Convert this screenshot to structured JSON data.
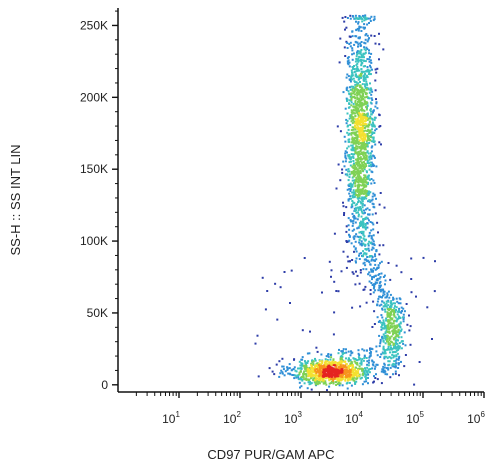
{
  "chart_data": {
    "type": "scatter",
    "subtype": "flow-cytometry-density-dot-plot",
    "title": "",
    "xlabel": "CD97 PUR/GAM APC",
    "ylabel": "SS-H :: SS INT LIN",
    "x_scale": "log",
    "x_range": [
      1,
      1000000
    ],
    "y_scale": "linear",
    "y_range": [
      -5000,
      262144
    ],
    "x_ticks": [
      {
        "base": "10",
        "exp": "1",
        "value": 10
      },
      {
        "base": "10",
        "exp": "2",
        "value": 100
      },
      {
        "base": "10",
        "exp": "3",
        "value": 1000
      },
      {
        "base": "10",
        "exp": "4",
        "value": 10000
      },
      {
        "base": "10",
        "exp": "5",
        "value": 100000
      },
      {
        "base": "10",
        "exp": "6",
        "value": 1000000
      }
    ],
    "y_ticks": [
      {
        "label": "0",
        "value": 0
      },
      {
        "label": "50K",
        "value": 50000
      },
      {
        "label": "100K",
        "value": 100000
      },
      {
        "label": "150K",
        "value": 150000
      },
      {
        "label": "200K",
        "value": 200000
      },
      {
        "label": "250K",
        "value": 250000
      }
    ],
    "populations": [
      {
        "center_x": 3000,
        "center_y": 10000,
        "count": 900
      },
      {
        "center_x": 9000,
        "center_y": 175000,
        "count": 1500
      },
      {
        "center_x": 30000,
        "center_y": 38000,
        "count": 300
      }
    ],
    "density_colors": [
      "#2e3da8",
      "#2f8fd6",
      "#3cc3c0",
      "#7fd155",
      "#f4e030",
      "#f7941d",
      "#e52421"
    ],
    "grid": false,
    "legend": "none"
  }
}
